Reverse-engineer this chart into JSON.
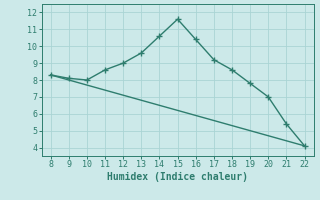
{
  "x": [
    8,
    9,
    10,
    11,
    12,
    13,
    14,
    15,
    16,
    17,
    18,
    19,
    20,
    21,
    22
  ],
  "y": [
    8.3,
    8.1,
    8.0,
    8.6,
    9.0,
    9.6,
    10.6,
    11.6,
    10.4,
    9.2,
    8.6,
    7.8,
    7.0,
    5.4,
    4.1
  ],
  "line_color": "#2e7d6e",
  "bg_color": "#cce9e9",
  "grid_color": "#aad4d4",
  "xlabel": "Humidex (Indice chaleur)",
  "xlim": [
    7.5,
    22.5
  ],
  "ylim": [
    3.5,
    12.5
  ],
  "xticks": [
    8,
    9,
    10,
    11,
    12,
    13,
    14,
    15,
    16,
    17,
    18,
    19,
    20,
    21,
    22
  ],
  "yticks": [
    4,
    5,
    6,
    7,
    8,
    9,
    10,
    11,
    12
  ],
  "marker": "+",
  "marker_size": 4,
  "line_width": 1.0
}
